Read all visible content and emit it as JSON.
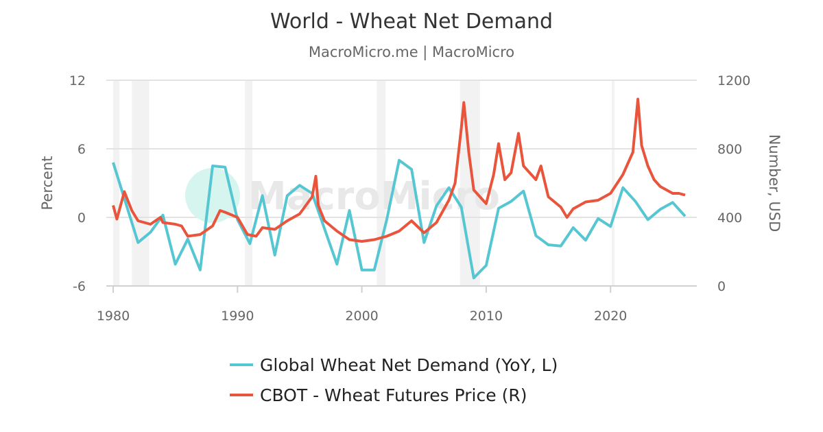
{
  "chart_data": {
    "type": "line",
    "title": "World - Wheat Net Demand",
    "subtitle": "MacroMicro.me | MacroMicro",
    "watermark": "MacroMicro",
    "xlabel": "",
    "ylabel_left": "Percent",
    "ylabel_right": "Number, USD",
    "xlim": [
      1980,
      2026.5
    ],
    "ylim_left": [
      -6,
      12
    ],
    "ylim_right": [
      0,
      1200
    ],
    "x_ticks": [
      "1980",
      "1990",
      "2000",
      "2010",
      "2020"
    ],
    "y_ticks_left": [
      "12",
      "6",
      "0",
      "-6"
    ],
    "y_ticks_right": [
      "1200",
      "800",
      "400",
      "0"
    ],
    "grid": true,
    "legend_position": "bottom",
    "shaded_periods": [
      [
        1980.0,
        1980.5
      ],
      [
        1981.5,
        1982.9
      ],
      [
        1990.6,
        1991.2
      ],
      [
        2001.2,
        2001.9
      ],
      [
        2007.9,
        2009.5
      ],
      [
        2020.1,
        2020.3
      ]
    ],
    "series": [
      {
        "name": "Global Wheat Net Demand (YoY, L)",
        "axis": "left",
        "color": "#56c6d3",
        "x": [
          1980,
          1982,
          1983,
          1984,
          1985,
          1986,
          1987,
          1988,
          1989,
          1990,
          1991,
          1992,
          1993,
          1994,
          1995,
          1996,
          1997,
          1998,
          1999,
          2000,
          2001,
          2002,
          2003,
          2004,
          2005,
          2006,
          2007,
          2008,
          2009,
          2010,
          2011,
          2012,
          2013,
          2014,
          2015,
          2016,
          2017,
          2018,
          2019,
          2020,
          2021,
          2022,
          2023,
          2024,
          2025,
          2026
        ],
        "values": [
          4.8,
          -2.2,
          -1.3,
          0.2,
          -4.1,
          -1.9,
          -4.6,
          4.5,
          4.4,
          -0.2,
          -2.3,
          1.9,
          -3.3,
          1.9,
          2.8,
          2.1,
          -1.0,
          -4.1,
          0.6,
          -4.6,
          -4.6,
          -0.2,
          5.0,
          4.2,
          -2.2,
          1.0,
          2.6,
          0.9,
          -5.3,
          -4.2,
          0.8,
          1.4,
          2.3,
          -1.6,
          -2.4,
          -2.5,
          -0.9,
          -2.0,
          -0.1,
          -0.8,
          2.6,
          1.4,
          -0.2,
          0.7,
          1.3,
          0.1
        ]
      },
      {
        "name": "CBOT - Wheat Futures Price (R)",
        "axis": "right",
        "color": "#e8553c",
        "x": [
          1980,
          1980.3,
          1980.9,
          1981.5,
          1982,
          1983,
          1983.8,
          1984,
          1985,
          1985.5,
          1986,
          1987,
          1988,
          1988.6,
          1989,
          1990,
          1990.8,
          1991.5,
          1992,
          1993,
          1994,
          1995,
          1996,
          1996.3,
          1996.5,
          1997,
          1998,
          1999,
          2000,
          2001,
          2002,
          2003,
          2004,
          2005,
          2006,
          2007,
          2007.5,
          2008,
          2008.2,
          2008.6,
          2009,
          2009.5,
          2010,
          2010.6,
          2011,
          2011.5,
          2012,
          2012.6,
          2013,
          2014,
          2014.4,
          2015,
          2016,
          2016.5,
          2017,
          2018,
          2019,
          2020,
          2021,
          2021.8,
          2022.2,
          2022.5,
          2023,
          2023.5,
          2024,
          2024.5,
          2025,
          2025.5,
          2026
        ],
        "values": [
          470,
          390,
          550,
          440,
          380,
          360,
          400,
          370,
          360,
          350,
          290,
          300,
          350,
          440,
          430,
          400,
          300,
          290,
          340,
          330,
          380,
          420,
          520,
          640,
          470,
          380,
          320,
          270,
          260,
          270,
          290,
          320,
          380,
          310,
          370,
          500,
          600,
          920,
          1070,
          780,
          560,
          520,
          480,
          650,
          830,
          620,
          660,
          890,
          700,
          620,
          700,
          520,
          460,
          400,
          450,
          490,
          500,
          540,
          650,
          780,
          1090,
          820,
          700,
          620,
          580,
          560,
          540,
          540,
          530
        ]
      }
    ]
  }
}
